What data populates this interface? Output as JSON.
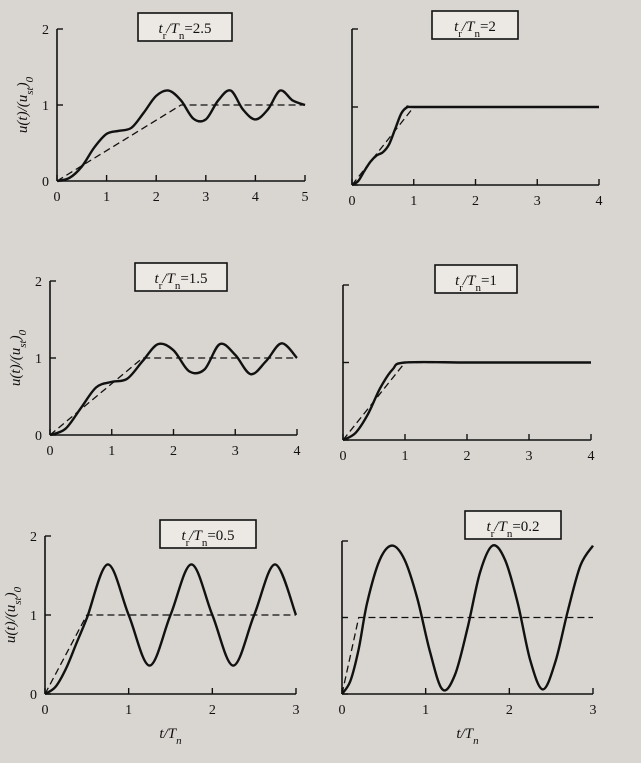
{
  "chart_data": [
    {
      "type": "line",
      "title_parts": [
        "t",
        "r",
        "/T",
        "n",
        "=2.5"
      ],
      "ylabel_parts": [
        "u(t)/(u",
        "st",
        ")",
        "0"
      ],
      "xlabel_parts": [],
      "xlim": [
        0,
        5
      ],
      "ylim": [
        0,
        2
      ],
      "xticks": [
        "0",
        "1",
        "2",
        "3",
        "4",
        "5"
      ],
      "yticks": [
        "0",
        "1",
        "2"
      ],
      "x_tick_values": [
        0,
        1,
        2,
        3,
        4,
        5
      ],
      "y_tick_values": [
        0,
        1,
        2
      ],
      "ratio": 2.5,
      "series": [
        {
          "style": "solid",
          "x": [
            0,
            0.25,
            0.5,
            0.75,
            1.0,
            1.25,
            1.5,
            1.75,
            2.0,
            2.25,
            2.5,
            2.75,
            3.0,
            3.25,
            3.5,
            3.75,
            4.0,
            4.25,
            4.5,
            4.75,
            5.0
          ],
          "y": [
            0,
            0.04,
            0.19,
            0.44,
            0.62,
            0.66,
            0.7,
            0.9,
            1.12,
            1.19,
            1.06,
            0.82,
            0.81,
            1.06,
            1.19,
            0.94,
            0.81,
            0.94,
            1.19,
            1.06,
            1.0
          ]
        },
        {
          "style": "dashed",
          "x": [
            0,
            2.5,
            5.0
          ],
          "y": [
            0,
            1,
            1
          ]
        }
      ]
    },
    {
      "type": "line",
      "title_parts": [
        "t",
        "r",
        "/T",
        "n",
        "=2"
      ],
      "ylabel_parts": [],
      "xlabel_parts": [],
      "xlim": [
        0,
        4
      ],
      "ylim": [
        0,
        2
      ],
      "xticks": [
        "0",
        "1",
        "2",
        "3",
        "4"
      ],
      "yticks": [],
      "x_tick_values": [
        0,
        1,
        2,
        3,
        4
      ],
      "y_tick_values": [
        0,
        1,
        2
      ],
      "ratio": 2,
      "series": [
        {
          "style": "solid",
          "x": [
            0,
            0.1,
            0.2,
            0.3,
            0.4,
            0.5,
            0.6,
            0.7,
            0.8,
            0.9,
            1.0,
            2.0,
            3.0,
            4.0
          ],
          "y": [
            0,
            0.05,
            0.18,
            0.3,
            0.38,
            0.42,
            0.52,
            0.72,
            0.92,
            1.0,
            1.0,
            1.0,
            1.0,
            1.0
          ]
        },
        {
          "style": "dashed",
          "x": [
            0,
            1.0,
            4.0
          ],
          "y": [
            0,
            1,
            1
          ]
        }
      ]
    },
    {
      "type": "line",
      "title_parts": [
        "t",
        "r",
        "/T",
        "n",
        "=1.5"
      ],
      "ylabel_parts": [
        "u(t)/(u",
        "st",
        ")",
        "0"
      ],
      "xlabel_parts": [],
      "xlim": [
        0,
        4
      ],
      "ylim": [
        0,
        2
      ],
      "xticks": [
        "0",
        "1",
        "2",
        "3",
        "4"
      ],
      "yticks": [
        "0",
        "1",
        "2"
      ],
      "x_tick_values": [
        0,
        1,
        2,
        3,
        4
      ],
      "y_tick_values": [
        0,
        1,
        2
      ],
      "ratio": 1.5,
      "series": [
        {
          "style": "solid",
          "x": [
            0,
            0.25,
            0.5,
            0.75,
            1.0,
            1.25,
            1.5,
            1.75,
            2.0,
            2.25,
            2.5,
            2.75,
            3.0,
            3.25,
            3.5,
            3.75,
            4.0
          ],
          "y": [
            0,
            0.08,
            0.35,
            0.62,
            0.69,
            0.73,
            0.96,
            1.18,
            1.1,
            0.83,
            0.85,
            1.18,
            1.04,
            0.79,
            0.96,
            1.19,
            1.0
          ]
        },
        {
          "style": "dashed",
          "x": [
            0,
            1.5,
            4.0
          ],
          "y": [
            0,
            1,
            1
          ]
        }
      ]
    },
    {
      "type": "line",
      "title_parts": [
        "t",
        "r",
        "/T",
        "n",
        "=1"
      ],
      "ylabel_parts": [],
      "xlabel_parts": [],
      "xlim": [
        0,
        4
      ],
      "ylim": [
        0,
        2
      ],
      "xticks": [
        "0",
        "1",
        "2",
        "3",
        "4"
      ],
      "yticks": [],
      "x_tick_values": [
        0,
        1,
        2,
        3,
        4
      ],
      "y_tick_values": [
        0,
        1,
        2
      ],
      "ratio": 1,
      "series": [
        {
          "style": "solid",
          "x": [
            0,
            0.2,
            0.4,
            0.6,
            0.8,
            1.0,
            2.0,
            3.0,
            4.0
          ],
          "y": [
            0,
            0.09,
            0.33,
            0.67,
            0.91,
            1.0,
            1.0,
            1.0,
            1.0
          ]
        },
        {
          "style": "dashed",
          "x": [
            0,
            1.0,
            4.0
          ],
          "y": [
            0,
            1,
            1
          ]
        }
      ]
    },
    {
      "type": "line",
      "title_parts": [
        "t",
        "r",
        "/T",
        "n",
        "=0.5"
      ],
      "ylabel_parts": [
        "u(t)/(u",
        "st",
        ")",
        "0"
      ],
      "xlabel_parts": [
        "t/T",
        "n"
      ],
      "xlim": [
        0,
        3
      ],
      "ylim": [
        0,
        2
      ],
      "xticks": [
        "0",
        "1",
        "2",
        "3"
      ],
      "yticks": [
        "0",
        "1",
        "2"
      ],
      "x_tick_values": [
        0,
        1,
        2,
        3
      ],
      "y_tick_values": [
        0,
        1,
        2
      ],
      "ratio": 0.5,
      "series": [
        {
          "style": "solid",
          "x": [
            0,
            0.125,
            0.25,
            0.375,
            0.5,
            0.75,
            1.0,
            1.25,
            1.5,
            1.75,
            2.0,
            2.25,
            2.5,
            2.75,
            3.0
          ],
          "y": [
            0,
            0.09,
            0.32,
            0.64,
            0.96,
            1.64,
            1.0,
            0.36,
            1.0,
            1.64,
            1.0,
            0.36,
            1.0,
            1.64,
            1.0
          ]
        },
        {
          "style": "dashed",
          "x": [
            0,
            0.5,
            3.0
          ],
          "y": [
            0,
            1,
            1
          ]
        }
      ]
    },
    {
      "type": "line",
      "title_parts": [
        "t",
        "r",
        "/T",
        "n",
        "=0.2"
      ],
      "ylabel_parts": [],
      "xlabel_parts": [
        "t/T",
        "n"
      ],
      "xlim": [
        0,
        3
      ],
      "ylim": [
        0,
        2
      ],
      "xticks": [
        "0",
        "1",
        "2",
        "3"
      ],
      "yticks": [],
      "x_tick_values": [
        0,
        1,
        2,
        3
      ],
      "y_tick_values": [
        0,
        1,
        2
      ],
      "ratio": 0.2,
      "series": [
        {
          "style": "solid",
          "x": [
            0,
            0.1,
            0.2,
            0.3,
            0.45,
            0.6,
            0.75,
            0.9,
            1.05,
            1.2,
            1.35,
            1.5,
            1.65,
            1.8,
            1.95,
            2.1,
            2.25,
            2.4,
            2.55,
            2.7,
            2.85,
            3.0
          ],
          "y": [
            0,
            0.17,
            0.59,
            1.19,
            1.75,
            1.94,
            1.75,
            1.25,
            0.56,
            0.06,
            0.25,
            0.86,
            1.59,
            1.94,
            1.75,
            1.19,
            0.44,
            0.06,
            0.42,
            1.09,
            1.68,
            1.94
          ]
        },
        {
          "style": "dashed",
          "x": [
            0,
            0.2,
            3.0
          ],
          "y": [
            0,
            1,
            1
          ]
        }
      ]
    }
  ]
}
